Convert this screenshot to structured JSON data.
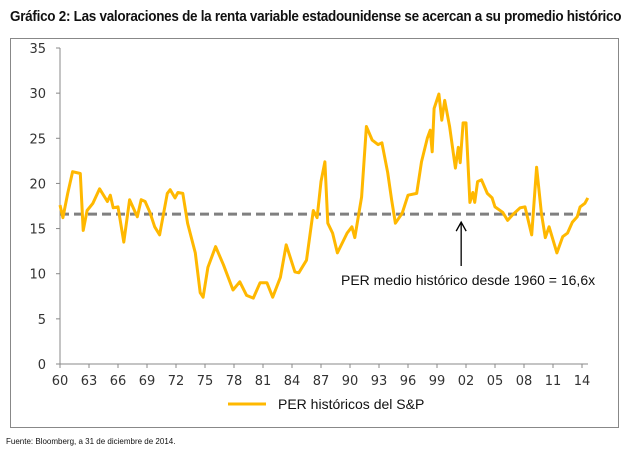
{
  "chart_data": {
    "type": "line",
    "title": "Gráfico 2: Las valoraciones de la renta variable estadounidense se acercan a su promedio histórico",
    "xlabel": "",
    "ylabel": "",
    "xlim": [
      1960,
      2014
    ],
    "ylim": [
      0,
      35
    ],
    "x_ticks": [
      "60",
      "63",
      "66",
      "69",
      "72",
      "75",
      "78",
      "81",
      "84",
      "87",
      "90",
      "93",
      "96",
      "99",
      "02",
      "05",
      "08",
      "11",
      "14"
    ],
    "y_ticks": [
      "0",
      "5",
      "10",
      "15",
      "20",
      "25",
      "30",
      "35"
    ],
    "grid": false,
    "legend_position": "bottom",
    "series": [
      {
        "name": "PER históricos del S&P",
        "color": "#FFB800",
        "x": [
          1960.0,
          1960.3,
          1960.8,
          1961.3,
          1962.1,
          1962.4,
          1962.8,
          1963.4,
          1964.1,
          1964.9,
          1965.2,
          1965.5,
          1966.0,
          1966.6,
          1967.2,
          1968.0,
          1968.4,
          1968.8,
          1969.3,
          1969.8,
          1970.3,
          1971.1,
          1971.4,
          1971.9,
          1972.2,
          1972.7,
          1973.2,
          1974.0,
          1974.5,
          1974.8,
          1975.3,
          1976.1,
          1976.9,
          1977.9,
          1978.6,
          1979.3,
          1980.0,
          1980.7,
          1981.4,
          1982.0,
          1982.8,
          1983.4,
          1984.3,
          1984.7,
          1985.5,
          1986.2,
          1986.6,
          1987.0,
          1987.4,
          1987.7,
          1988.2,
          1988.7,
          1989.7,
          1990.2,
          1990.5,
          1991.2,
          1991.7,
          1992.3,
          1992.9,
          1993.3,
          1993.9,
          1994.3,
          1994.7,
          1995.4,
          1996.0,
          1996.9,
          1997.4,
          1998.0,
          1998.3,
          1998.5,
          1998.7,
          1999.2,
          1999.5,
          1999.8,
          2000.3,
          2000.9,
          2001.2,
          2001.4,
          2001.7,
          2002.0,
          2002.4,
          2002.7,
          2002.9,
          2003.2,
          2003.6,
          2004.2,
          2004.7,
          2005.0,
          2005.8,
          2006.3,
          2006.8,
          2007.6,
          2008.1,
          2008.8,
          2009.3,
          2009.8,
          2010.2,
          2010.6,
          2011.4,
          2012.0,
          2012.5,
          2013.0,
          2013.5,
          2013.8,
          2014.3,
          2014.6
        ],
        "values": [
          17.6,
          16.2,
          18.9,
          21.3,
          21.1,
          14.8,
          17.0,
          17.8,
          19.4,
          18.0,
          18.7,
          17.3,
          17.4,
          13.5,
          18.2,
          16.3,
          18.2,
          18.0,
          16.8,
          15.2,
          14.3,
          18.9,
          19.3,
          18.4,
          19.0,
          18.9,
          15.6,
          12.3,
          7.9,
          7.4,
          10.7,
          13.0,
          11.0,
          8.2,
          9.1,
          7.6,
          7.3,
          9.0,
          9.0,
          7.4,
          9.6,
          13.2,
          10.2,
          10.1,
          11.5,
          17.0,
          16.2,
          20.2,
          22.4,
          15.6,
          14.5,
          12.3,
          14.5,
          15.2,
          14.0,
          18.5,
          26.3,
          24.8,
          24.3,
          24.5,
          21.2,
          18.2,
          15.6,
          16.7,
          18.7,
          18.9,
          22.4,
          25.0,
          25.9,
          23.5,
          28.3,
          29.9,
          27.0,
          29.2,
          26.3,
          21.7,
          24.0,
          22.3,
          26.7,
          26.7,
          17.9,
          19.0,
          17.9,
          20.2,
          20.4,
          18.9,
          18.4,
          17.4,
          16.8,
          15.9,
          16.5,
          17.3,
          17.4,
          14.3,
          21.8,
          16.7,
          14.0,
          15.2,
          12.3,
          14.1,
          14.5,
          15.7,
          16.3,
          17.4,
          17.8,
          18.4
        ]
      }
    ],
    "reference_line": {
      "value": 16.6,
      "color": "#808080",
      "style": "dashed"
    },
    "annotations": [
      {
        "text": "PER medio histórico desde 1960 = 16,6x",
        "points_to": [
          2001.5,
          16.6
        ]
      }
    ]
  },
  "source": "Fuente: Bloomberg, a 31 de diciembre de 2014."
}
